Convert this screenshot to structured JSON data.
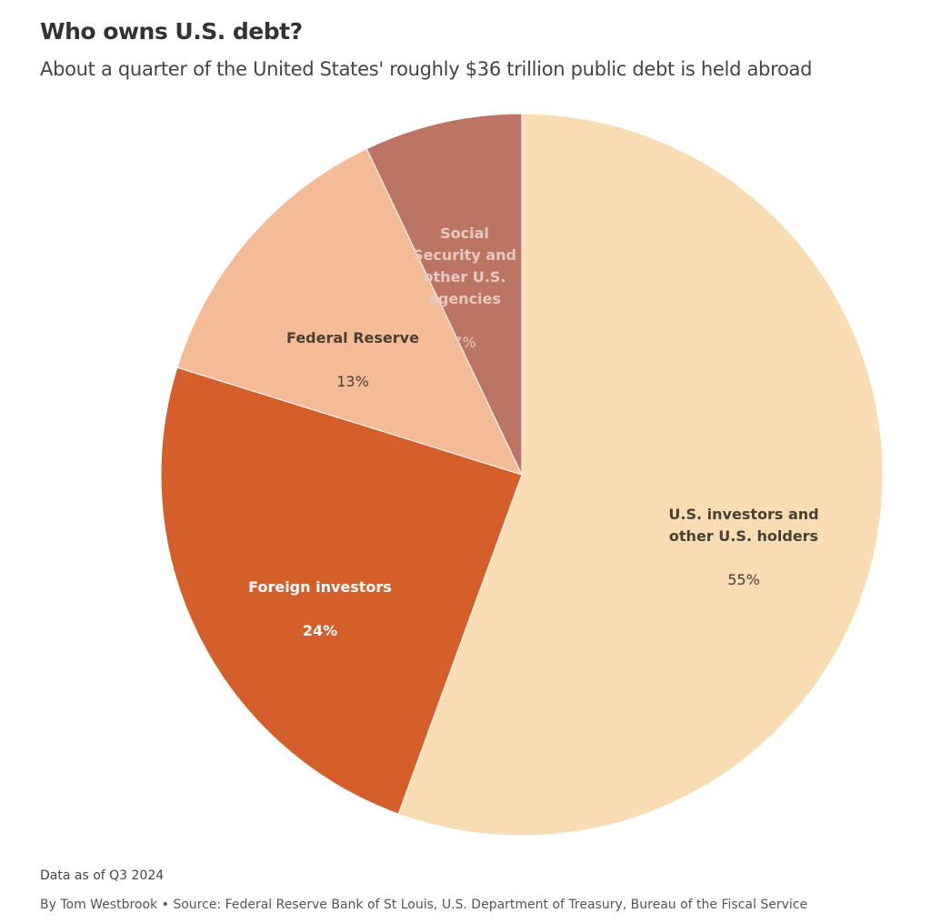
{
  "title": "Who owns U.S. debt?",
  "subtitle": "About a quarter of the United States' roughly $36 trillion public debt is held abroad",
  "chart_data": {
    "type": "pie",
    "direction": "clockwise from top",
    "slices": [
      {
        "name": "U.S. investors and\nother U.S. holders",
        "value": 55,
        "label": "55%",
        "color": "#f7dcb4",
        "text_color": "#4a3f35"
      },
      {
        "name": "Foreign investors",
        "value": 24,
        "label": "24%",
        "color": "#d45f2a",
        "text_color": "#ffffff"
      },
      {
        "name": "Federal Reserve",
        "value": 13,
        "label": "13%",
        "color": "#f5bb96",
        "text_color": "#4a3f35"
      },
      {
        "name": "Social\nSecurity and\nother U.S.\nagencies",
        "value": 7,
        "label": "7%",
        "color": "#bc7565",
        "text_color": "#e8c8c0"
      }
    ]
  },
  "footer": {
    "note": "Data as of Q3 2024",
    "source": "By Tom Westbrook • Source: Federal Reserve Bank of St Louis, U.S. Department of Treasury, Bureau of the Fiscal Service"
  }
}
